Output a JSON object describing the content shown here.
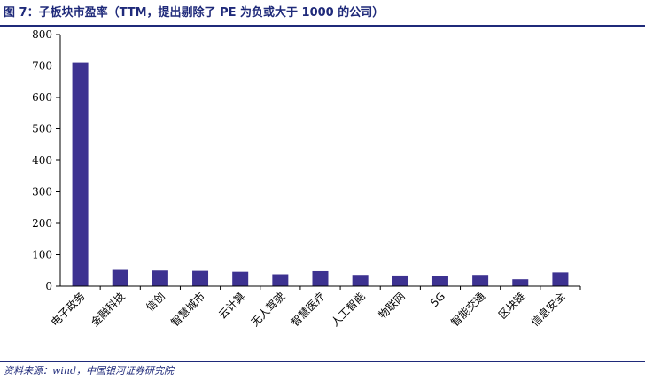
{
  "header": {
    "title": "图 7：子板块市盈率（TTM，提出剔除了 PE 为负或大于 1000 的公司）"
  },
  "footer": {
    "source": "资料来源：wind，中国银河证券研究院"
  },
  "colors": {
    "bar": "#3d3291",
    "accent": "#1f2a7a"
  },
  "chart_data": {
    "type": "bar",
    "categories": [
      "电子政务",
      "金融科技",
      "信创",
      "智慧城市",
      "云计算",
      "无人驾驶",
      "智慧医疗",
      "人工智能",
      "物联网",
      "5G",
      "智能交通",
      "区块链",
      "信息安全"
    ],
    "values": [
      711,
      52,
      50,
      49,
      46,
      38,
      48,
      36,
      34,
      33,
      36,
      22,
      44
    ],
    "yticks": [
      0,
      100,
      200,
      300,
      400,
      500,
      600,
      700,
      800
    ],
    "ylim": [
      0,
      800
    ],
    "title": "",
    "xlabel": "",
    "ylabel": "",
    "grid": false,
    "legend": "none"
  }
}
